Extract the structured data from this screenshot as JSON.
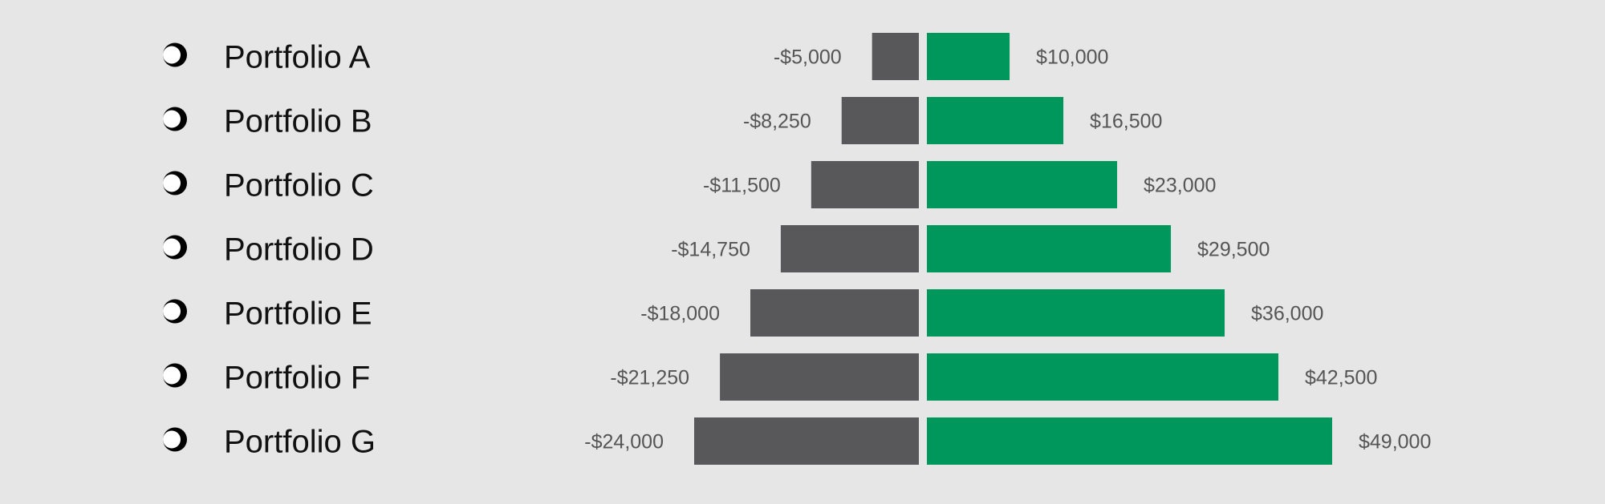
{
  "chart_data": {
    "type": "bar",
    "orientation": "diverging-horizontal",
    "categories": [
      "Portfolio A",
      "Portfolio B",
      "Portfolio C",
      "Portfolio D",
      "Portfolio E",
      "Portfolio F",
      "Portfolio G"
    ],
    "series": [
      {
        "values": [
          -5000,
          -8250,
          -11500,
          -14750,
          -18000,
          -21250,
          -24000
        ],
        "labels": [
          "-$5,000",
          "-$8,250",
          "-$11,500",
          "-$14,750",
          "-$18,000",
          "-$21,250",
          "-$24,000"
        ],
        "color": "#58585a"
      },
      {
        "values": [
          10000,
          16500,
          23000,
          29500,
          36000,
          42500,
          49000
        ],
        "labels": [
          "$10,000",
          "$16,500",
          "$23,000",
          "$29,500",
          "$36,000",
          "$42,500",
          "$49,000"
        ],
        "color": "#00975c"
      }
    ],
    "title": "",
    "xlabel": "",
    "ylabel": "",
    "grid": false,
    "legend": "none",
    "bullet_icon": "radio-circle-icon",
    "background": "#e6e6e7"
  }
}
